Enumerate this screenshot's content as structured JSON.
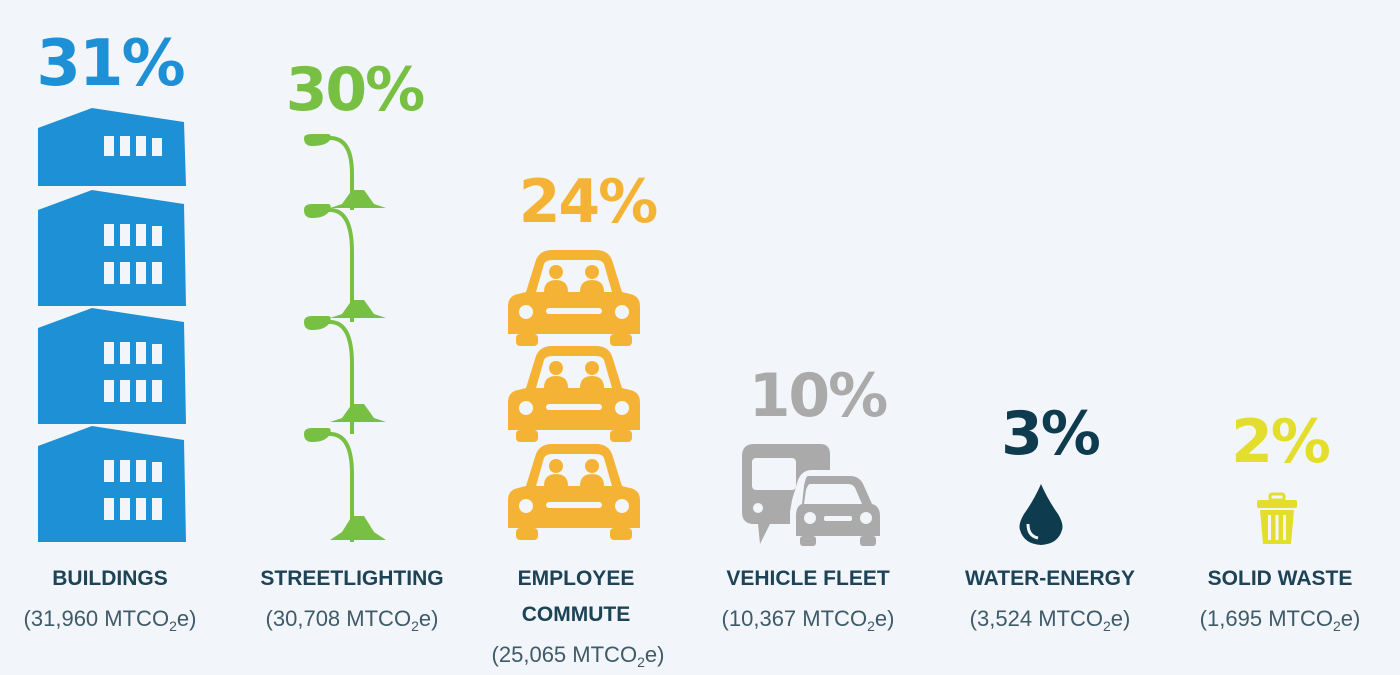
{
  "chart_data": {
    "type": "bar",
    "title": "",
    "categories": [
      "BUILDINGS",
      "STREETLIGHTING",
      "EMPLOYEE COMMUTE",
      "VEHICLE FLEET",
      "WATER-ENERGY",
      "SOLID WASTE"
    ],
    "percent_labels": [
      "31%",
      "30%",
      "24%",
      "10%",
      "3%",
      "2%"
    ],
    "values_percent": [
      31,
      30,
      24,
      10,
      3,
      2
    ],
    "values_mtco2e": [
      31960,
      30708,
      25065,
      10367,
      3524,
      1695
    ],
    "value_labels": [
      "31,960",
      "30,708",
      "25,065",
      "10,367",
      "3,524",
      "1,695"
    ],
    "unit": {
      "prefix": "MTCO",
      "subscript": "2",
      "suffix": "e"
    },
    "label_lines": [
      [
        "BUILDINGS"
      ],
      [
        "STREETLIGHTING"
      ],
      [
        "EMPLOYEE",
        "COMMUTE"
      ],
      [
        "VEHICLE FLEET"
      ],
      [
        "WATER-ENERGY"
      ],
      [
        "SOLID WASTE"
      ]
    ],
    "colors": [
      "#1e90d6",
      "#78c043",
      "#f5b335",
      "#aaaaaa",
      "#0f3b4f",
      "#e3de2e"
    ],
    "icons": [
      "building-icon",
      "streetlight-icon",
      "car-icon",
      "bus-car-icon",
      "water-drop-icon",
      "trash-can-icon"
    ]
  }
}
